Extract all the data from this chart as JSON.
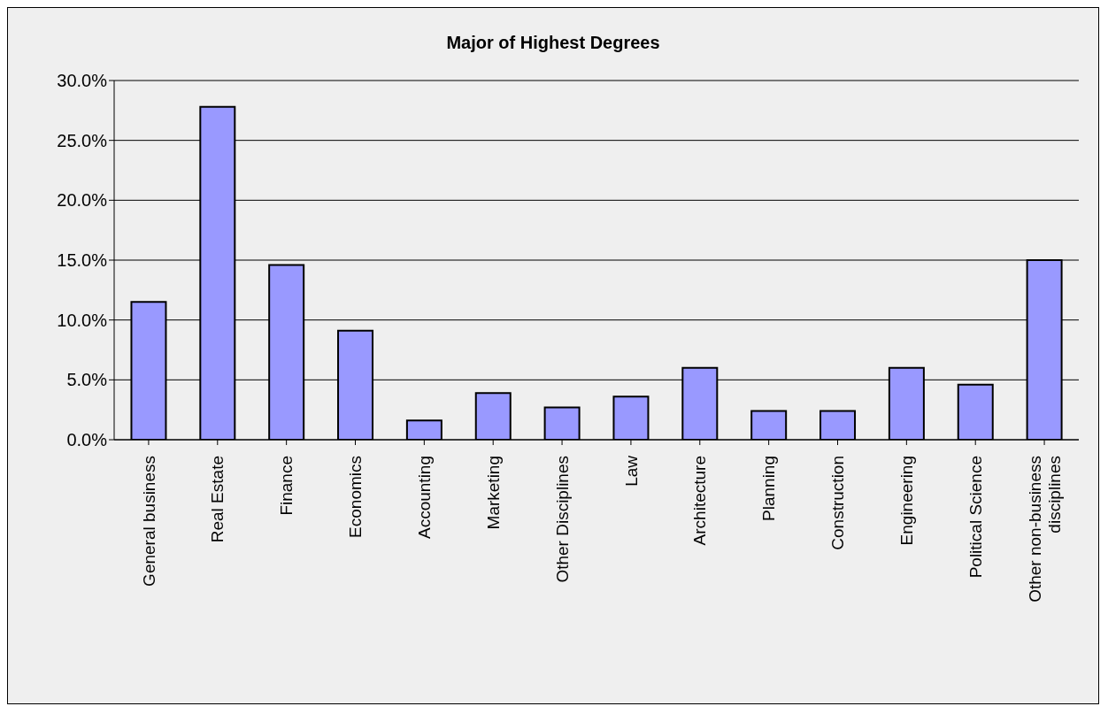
{
  "chart_data": {
    "type": "bar",
    "title": "Major of Highest Degrees",
    "categories": [
      "General business",
      "Real Estate",
      "Finance",
      "Economics",
      "Accounting",
      "Marketing",
      "Other Disciplines",
      "Law",
      "Architecture",
      "Planning",
      "Construction",
      "Engineering",
      "Political Science",
      "Other non-business disciplines"
    ],
    "values": [
      11.5,
      27.8,
      14.6,
      9.1,
      1.6,
      3.9,
      2.7,
      3.6,
      6.0,
      2.4,
      2.4,
      6.0,
      4.6,
      15.0
    ],
    "color": "#9999ff",
    "ylim": [
      0,
      30
    ],
    "yticks": [
      {
        "value": 0,
        "label": "0.0%"
      },
      {
        "value": 5,
        "label": "5.0%"
      },
      {
        "value": 10,
        "label": "10.0%"
      },
      {
        "value": 15,
        "label": "15.0%"
      },
      {
        "value": 20,
        "label": "20.0%"
      },
      {
        "value": 25,
        "label": "25.0%"
      },
      {
        "value": 30,
        "label": "30.0%"
      }
    ],
    "grid": "y"
  }
}
